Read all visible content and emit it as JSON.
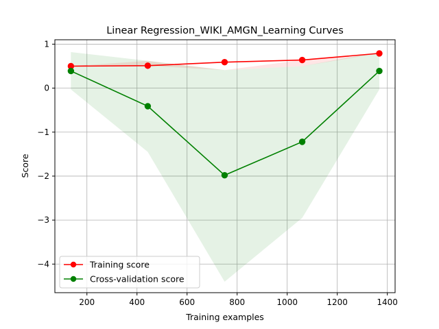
{
  "chart_data": {
    "type": "line",
    "title": "Linear Regression_WIKI_AMGN_Learning Curves",
    "xlabel": "Training examples",
    "ylabel": "Score",
    "xlim": [
      72,
      1431
    ],
    "ylim": [
      -4.65,
      1.1
    ],
    "xticks": [
      200,
      400,
      600,
      800,
      1000,
      1200,
      1400
    ],
    "yticks": [
      1,
      0,
      -1,
      -2,
      -3,
      -4
    ],
    "ytick_labels": [
      "1",
      "0",
      "−1",
      "−2",
      "−3",
      "−4"
    ],
    "grid": true,
    "legend_position": "lower-left",
    "x": [
      136,
      443,
      750,
      1060,
      1368
    ],
    "series": [
      {
        "name": "Training score",
        "color": "#ff0000",
        "values": [
          0.5,
          0.51,
          0.59,
          0.64,
          0.79
        ],
        "band_lower": [
          0.5,
          0.51,
          0.41,
          0.5,
          0.79
        ],
        "band_upper": [
          0.5,
          0.62,
          0.41,
          0.64,
          0.79
        ],
        "band_color": "#ff0000"
      },
      {
        "name": "Cross-validation score",
        "color": "#008000",
        "values": [
          0.39,
          -0.41,
          -1.98,
          -1.22,
          0.39
        ],
        "band_lower": [
          -0.03,
          -1.45,
          -4.4,
          -2.95,
          -0.03
        ],
        "band_upper": [
          0.82,
          0.62,
          0.41,
          0.5,
          0.82
        ],
        "band_color": "#008000"
      }
    ]
  }
}
